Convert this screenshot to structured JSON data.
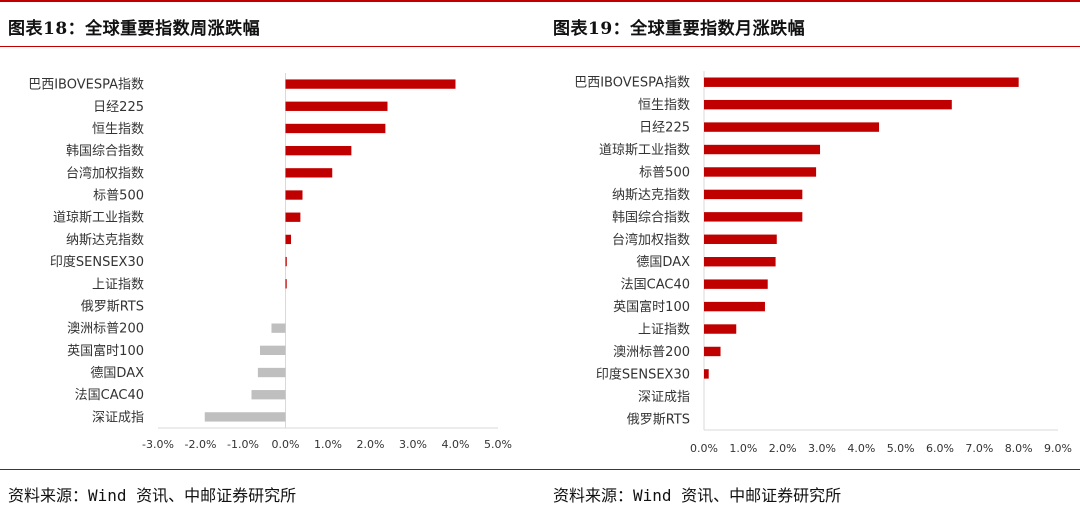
{
  "left": {
    "title": "图表18：全球重要指数周涨跌幅",
    "source": "资料来源：Wind 资讯、中邮证券研究所"
  },
  "right": {
    "title": "图表19：全球重要指数月涨跌幅",
    "source": "资料来源：Wind 资讯、中邮证券研究所"
  },
  "colors": {
    "positive": "#c00000",
    "negative": "#bfbfbf",
    "axis": "#d9d9d9",
    "accent": "#c00000"
  },
  "chart_data": [
    {
      "type": "bar",
      "orientation": "horizontal",
      "title": "图表18：全球重要指数周涨跌幅",
      "categories": [
        "巴西IBOVESPA指数",
        "日经225",
        "恒生指数",
        "韩国综合指数",
        "台湾加权指数",
        "标普500",
        "道琼斯工业指数",
        "纳斯达克指数",
        "印度SENSEX30",
        "上证指数",
        "俄罗斯RTS",
        "澳洲标普200",
        "英国富时100",
        "德国DAX",
        "法国CAC40",
        "深证成指"
      ],
      "values": [
        4.0,
        2.4,
        2.35,
        1.55,
        1.1,
        0.4,
        0.35,
        0.13,
        0.03,
        0.02,
        0.0,
        -0.33,
        -0.6,
        -0.65,
        -0.8,
        -1.9
      ],
      "unit": "%",
      "xlim": [
        -3.0,
        5.0
      ],
      "ticks": [
        "-3.0%",
        "-2.0%",
        "-1.0%",
        "0.0%",
        "1.0%",
        "2.0%",
        "3.0%",
        "4.0%",
        "5.0%"
      ],
      "grid": false
    },
    {
      "type": "bar",
      "orientation": "horizontal",
      "title": "图表19：全球重要指数月涨跌幅",
      "categories": [
        "巴西IBOVESPA指数",
        "恒生指数",
        "日经225",
        "道琼斯工业指数",
        "标普500",
        "纳斯达克指数",
        "韩国综合指数",
        "台湾加权指数",
        "德国DAX",
        "法国CAC40",
        "英国富时100",
        "上证指数",
        "澳洲标普200",
        "印度SENSEX30",
        "深证成指",
        "俄罗斯RTS"
      ],
      "values": [
        8.0,
        6.3,
        4.45,
        2.95,
        2.85,
        2.5,
        2.5,
        1.85,
        1.82,
        1.62,
        1.55,
        0.82,
        0.42,
        0.12,
        0.0,
        0.0
      ],
      "unit": "%",
      "xlim": [
        0.0,
        9.0
      ],
      "ticks": [
        "0.0%",
        "1.0%",
        "2.0%",
        "3.0%",
        "4.0%",
        "5.0%",
        "6.0%",
        "7.0%",
        "8.0%",
        "9.0%"
      ],
      "grid": false
    }
  ]
}
